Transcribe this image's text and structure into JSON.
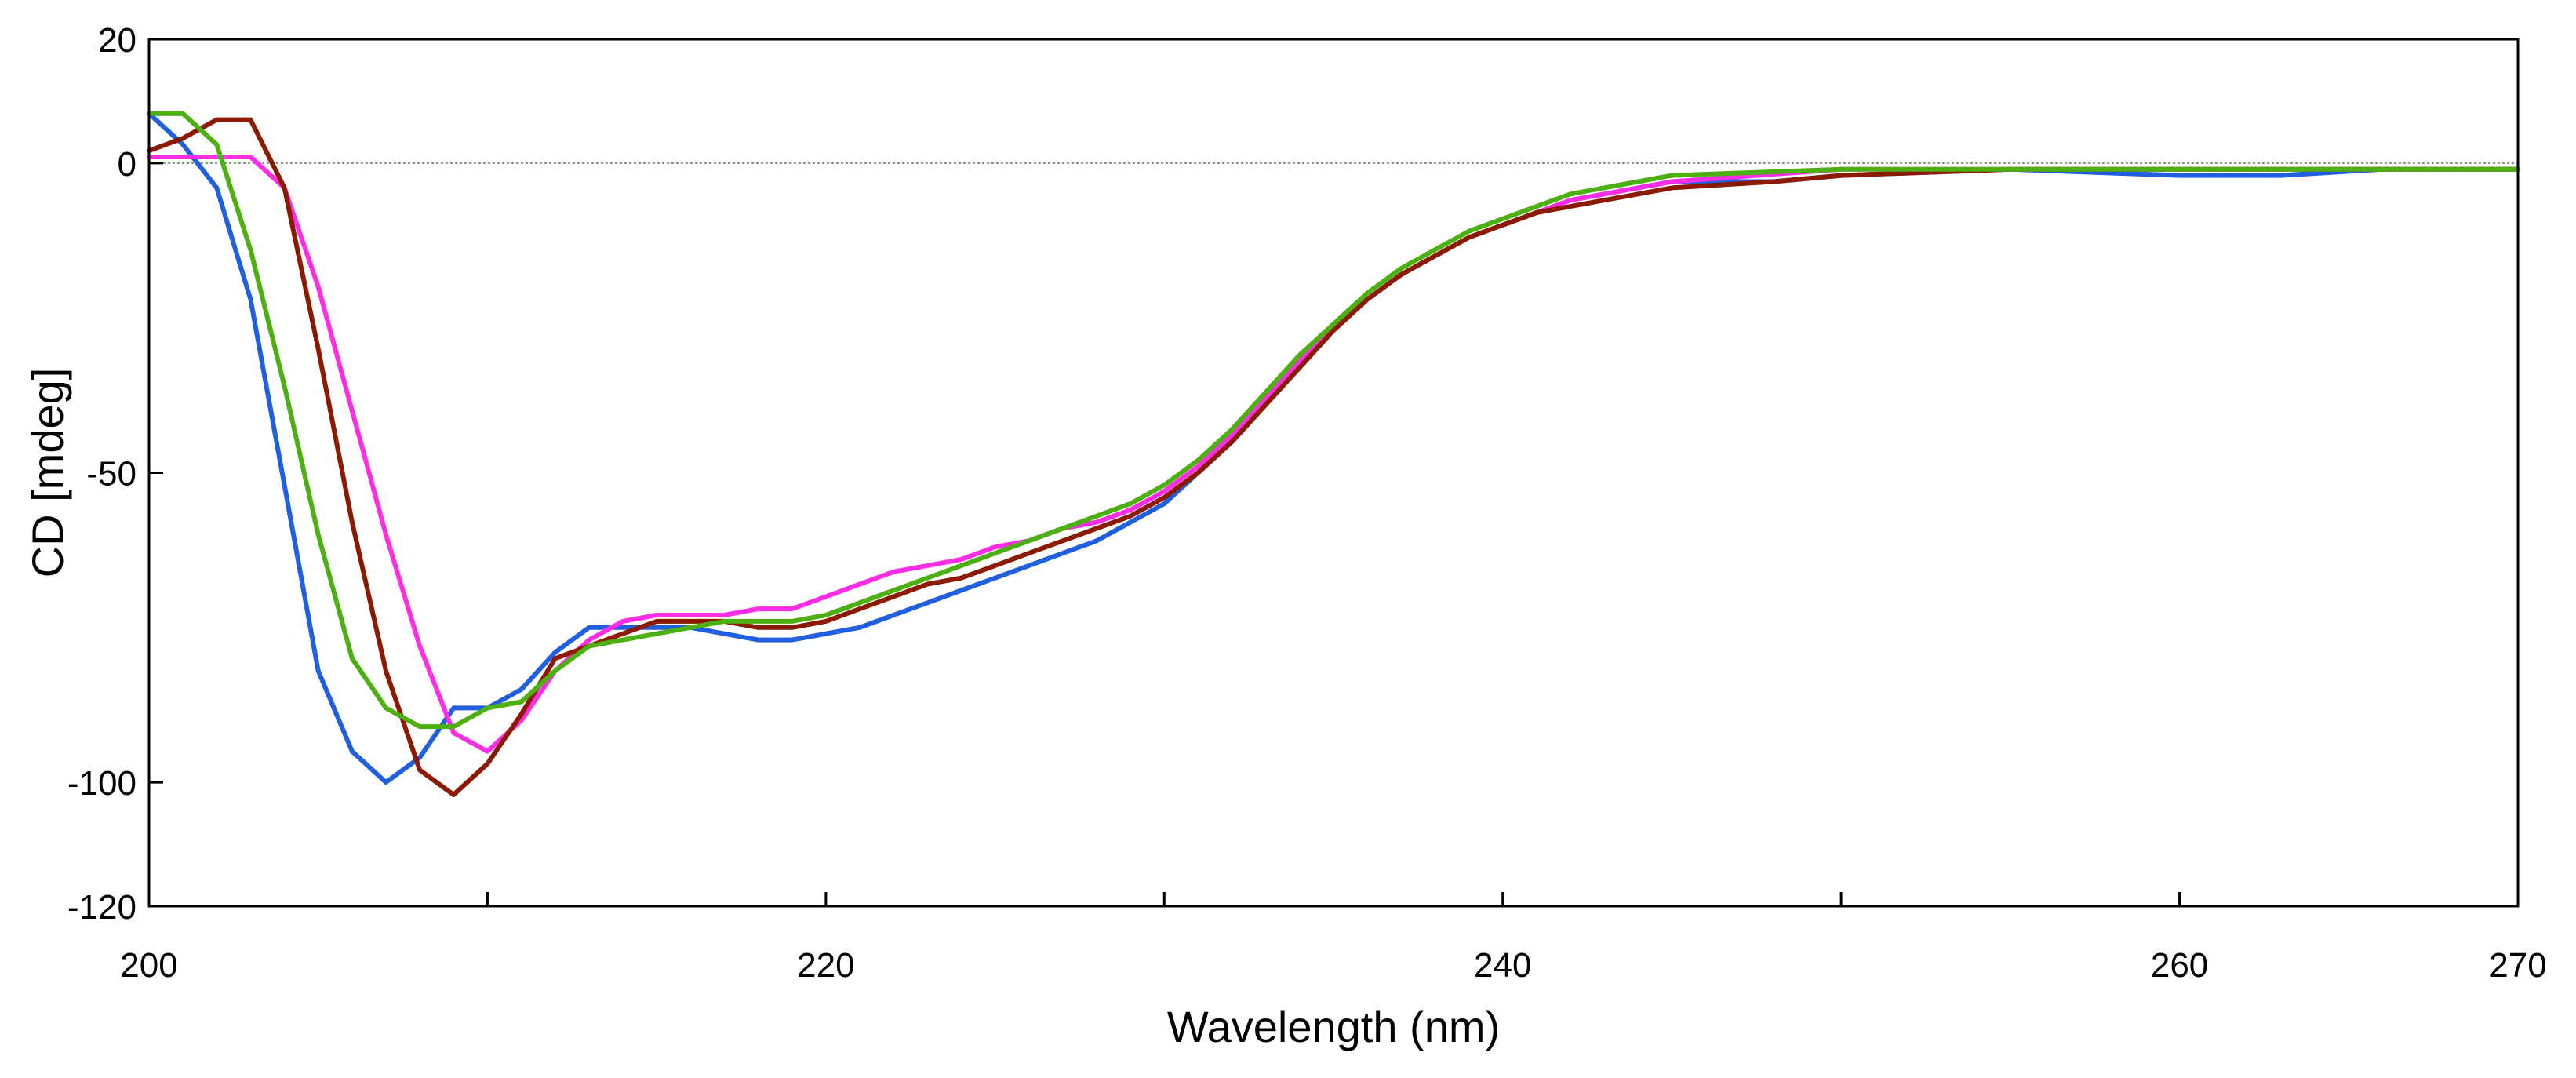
{
  "chart_data": {
    "type": "line",
    "title": "",
    "xlabel": "Wavelength (nm)",
    "ylabel": "CD [mdeg]",
    "xlim": [
      200,
      270
    ],
    "ylim": [
      -120,
      20
    ],
    "x_ticks": [
      200,
      210,
      220,
      230,
      240,
      250,
      260,
      270
    ],
    "x_tick_labels": [
      "200",
      "",
      "220",
      "",
      "240",
      "",
      "260",
      "270"
    ],
    "y_ticks": [
      20,
      0,
      -50,
      -100,
      -120
    ],
    "y_tick_labels": [
      "20",
      "0",
      "-50",
      "-100",
      "-120"
    ],
    "zero_line": 0,
    "grid": false,
    "legend": "none",
    "series": [
      {
        "name": "blue",
        "color": "#1f5fe0",
        "points": [
          [
            200,
            8
          ],
          [
            201,
            3
          ],
          [
            202,
            -4
          ],
          [
            203,
            -22
          ],
          [
            204,
            -52
          ],
          [
            205,
            -82
          ],
          [
            206,
            -95
          ],
          [
            207,
            -100
          ],
          [
            208,
            -96
          ],
          [
            209,
            -88
          ],
          [
            210,
            -88
          ],
          [
            211,
            -85
          ],
          [
            212,
            -79
          ],
          [
            213,
            -75
          ],
          [
            214,
            -75
          ],
          [
            215,
            -75
          ],
          [
            216,
            -75
          ],
          [
            217,
            -76
          ],
          [
            218,
            -77
          ],
          [
            219,
            -77
          ],
          [
            220,
            -76
          ],
          [
            221,
            -75
          ],
          [
            222,
            -73
          ],
          [
            223,
            -71
          ],
          [
            224,
            -69
          ],
          [
            225,
            -67
          ],
          [
            226,
            -65
          ],
          [
            227,
            -63
          ],
          [
            228,
            -61
          ],
          [
            229,
            -58
          ],
          [
            230,
            -55
          ],
          [
            231,
            -50
          ],
          [
            232,
            -45
          ],
          [
            233,
            -39
          ],
          [
            234,
            -33
          ],
          [
            235,
            -27
          ],
          [
            236,
            -22
          ],
          [
            237,
            -18
          ],
          [
            238,
            -15
          ],
          [
            239,
            -12
          ],
          [
            240,
            -10
          ],
          [
            241,
            -8
          ],
          [
            242,
            -6
          ],
          [
            243,
            -5
          ],
          [
            244,
            -4
          ],
          [
            245,
            -3
          ],
          [
            248,
            -3
          ],
          [
            250,
            -2
          ],
          [
            255,
            -1
          ],
          [
            260,
            -2
          ],
          [
            263,
            -2
          ],
          [
            266,
            -1
          ],
          [
            270,
            -1
          ]
        ]
      },
      {
        "name": "magenta",
        "color": "#ff2ee6",
        "points": [
          [
            200,
            1
          ],
          [
            201,
            1
          ],
          [
            202,
            1
          ],
          [
            203,
            1
          ],
          [
            204,
            -4
          ],
          [
            205,
            -20
          ],
          [
            206,
            -40
          ],
          [
            207,
            -60
          ],
          [
            208,
            -78
          ],
          [
            209,
            -92
          ],
          [
            210,
            -95
          ],
          [
            211,
            -90
          ],
          [
            212,
            -82
          ],
          [
            213,
            -77
          ],
          [
            214,
            -74
          ],
          [
            215,
            -73
          ],
          [
            216,
            -73
          ],
          [
            217,
            -73
          ],
          [
            218,
            -72
          ],
          [
            219,
            -72
          ],
          [
            220,
            -70
          ],
          [
            221,
            -68
          ],
          [
            222,
            -66
          ],
          [
            223,
            -65
          ],
          [
            224,
            -64
          ],
          [
            225,
            -62
          ],
          [
            226,
            -61
          ],
          [
            227,
            -59
          ],
          [
            228,
            -58
          ],
          [
            229,
            -56
          ],
          [
            230,
            -53
          ],
          [
            231,
            -49
          ],
          [
            232,
            -44
          ],
          [
            233,
            -38
          ],
          [
            234,
            -32
          ],
          [
            235,
            -27
          ],
          [
            236,
            -22
          ],
          [
            237,
            -18
          ],
          [
            238,
            -15
          ],
          [
            239,
            -12
          ],
          [
            240,
            -10
          ],
          [
            241,
            -8
          ],
          [
            242,
            -6
          ],
          [
            243,
            -5
          ],
          [
            244,
            -4
          ],
          [
            245,
            -3
          ],
          [
            250,
            -1
          ],
          [
            255,
            -1
          ],
          [
            260,
            -1
          ],
          [
            270,
            -1
          ]
        ]
      },
      {
        "name": "brown",
        "color": "#8b1a00",
        "points": [
          [
            200,
            2
          ],
          [
            201,
            4
          ],
          [
            202,
            7
          ],
          [
            203,
            7
          ],
          [
            204,
            -4
          ],
          [
            205,
            -30
          ],
          [
            206,
            -58
          ],
          [
            207,
            -82
          ],
          [
            208,
            -98
          ],
          [
            209,
            -102
          ],
          [
            210,
            -97
          ],
          [
            211,
            -89
          ],
          [
            212,
            -80
          ],
          [
            213,
            -78
          ],
          [
            214,
            -76
          ],
          [
            215,
            -74
          ],
          [
            216,
            -74
          ],
          [
            217,
            -74
          ],
          [
            218,
            -75
          ],
          [
            219,
            -75
          ],
          [
            220,
            -74
          ],
          [
            221,
            -72
          ],
          [
            222,
            -70
          ],
          [
            223,
            -68
          ],
          [
            224,
            -67
          ],
          [
            225,
            -65
          ],
          [
            226,
            -63
          ],
          [
            227,
            -61
          ],
          [
            228,
            -59
          ],
          [
            229,
            -57
          ],
          [
            230,
            -54
          ],
          [
            231,
            -50
          ],
          [
            232,
            -45
          ],
          [
            233,
            -39
          ],
          [
            234,
            -33
          ],
          [
            235,
            -27
          ],
          [
            236,
            -22
          ],
          [
            237,
            -18
          ],
          [
            238,
            -15
          ],
          [
            239,
            -12
          ],
          [
            240,
            -10
          ],
          [
            241,
            -8
          ],
          [
            242,
            -7
          ],
          [
            243,
            -6
          ],
          [
            244,
            -5
          ],
          [
            245,
            -4
          ],
          [
            248,
            -3
          ],
          [
            250,
            -2
          ],
          [
            255,
            -1
          ],
          [
            260,
            -1
          ],
          [
            265,
            -1
          ],
          [
            270,
            -1
          ]
        ]
      },
      {
        "name": "green",
        "color": "#4cb010",
        "points": [
          [
            200,
            8
          ],
          [
            201,
            8
          ],
          [
            202,
            3
          ],
          [
            203,
            -14
          ],
          [
            204,
            -36
          ],
          [
            205,
            -60
          ],
          [
            206,
            -80
          ],
          [
            207,
            -88
          ],
          [
            208,
            -91
          ],
          [
            209,
            -91
          ],
          [
            210,
            -88
          ],
          [
            211,
            -87
          ],
          [
            212,
            -82
          ],
          [
            213,
            -78
          ],
          [
            214,
            -77
          ],
          [
            215,
            -76
          ],
          [
            216,
            -75
          ],
          [
            217,
            -74
          ],
          [
            218,
            -74
          ],
          [
            219,
            -74
          ],
          [
            220,
            -73
          ],
          [
            221,
            -71
          ],
          [
            222,
            -69
          ],
          [
            223,
            -67
          ],
          [
            224,
            -65
          ],
          [
            225,
            -63
          ],
          [
            226,
            -61
          ],
          [
            227,
            -59
          ],
          [
            228,
            -57
          ],
          [
            229,
            -55
          ],
          [
            230,
            -52
          ],
          [
            231,
            -48
          ],
          [
            232,
            -43
          ],
          [
            233,
            -37
          ],
          [
            234,
            -31
          ],
          [
            235,
            -26
          ],
          [
            236,
            -21
          ],
          [
            237,
            -17
          ],
          [
            238,
            -14
          ],
          [
            239,
            -11
          ],
          [
            240,
            -9
          ],
          [
            241,
            -7
          ],
          [
            242,
            -5
          ],
          [
            243,
            -4
          ],
          [
            244,
            -3
          ],
          [
            245,
            -2
          ],
          [
            250,
            -1
          ],
          [
            255,
            -1
          ],
          [
            260,
            -1
          ],
          [
            265,
            -1
          ],
          [
            270,
            -1
          ]
        ]
      }
    ]
  }
}
